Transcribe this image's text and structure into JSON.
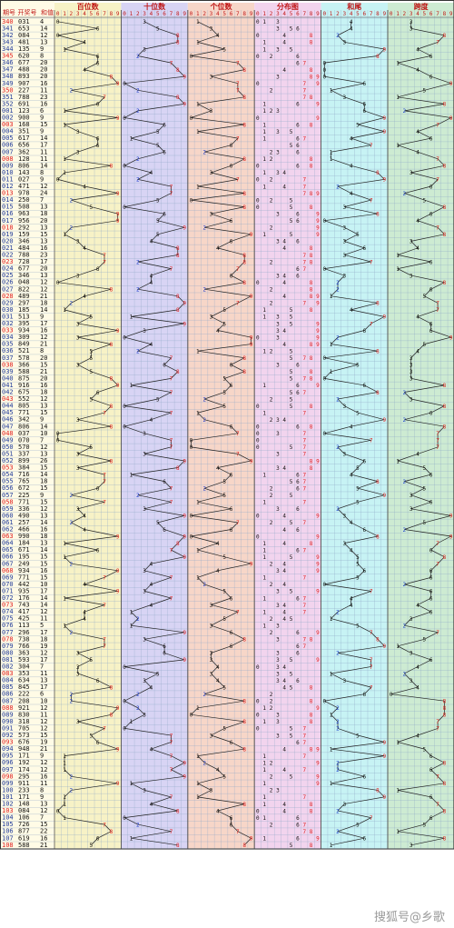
{
  "header": {
    "col_issue": "期号",
    "col_draw": "开奖号",
    "col_sum": "和值",
    "sections": [
      "百位数",
      "十位数",
      "个位数",
      "分布图",
      "和尾",
      "跨度"
    ],
    "digits": [
      "0",
      "1",
      "2",
      "3",
      "4",
      "5",
      "6",
      "7",
      "8",
      "9"
    ]
  },
  "colors": {
    "bg_hundreds": "#f7f2c6",
    "bg_tens": "#d8d4f4",
    "bg_units": "#f7d6c8",
    "bg_distribution": "#f2d4ee",
    "bg_sum_tail": "#c7f3f4",
    "bg_span": "#cdebd2",
    "header_text": "#c01818",
    "grid_line": "#8fa8c8",
    "line": "#222222",
    "highlight_red": "#e02020",
    "highlight_blue": "#1a3ccc"
  },
  "watermark": "搜狐号@乡歌",
  "chart_data": {
    "type": "table",
    "title": "",
    "columns": [
      "期号",
      "开奖号",
      "和值",
      "百位数",
      "十位数",
      "个位数",
      "分布图",
      "和尾",
      "跨度"
    ],
    "rows": [
      {
        "issue": "340",
        "draw": "031",
        "sum": 4
      },
      {
        "issue": "341",
        "draw": "653",
        "sum": 14
      },
      {
        "issue": "342",
        "draw": "084",
        "sum": 12
      },
      {
        "issue": "343",
        "draw": "481",
        "sum": 13
      },
      {
        "issue": "344",
        "draw": "135",
        "sum": 9
      },
      {
        "issue": "345",
        "draw": "620",
        "sum": 8
      },
      {
        "issue": "346",
        "draw": "677",
        "sum": 20
      },
      {
        "issue": "347",
        "draw": "488",
        "sum": 20
      },
      {
        "issue": "348",
        "draw": "893",
        "sum": 20
      },
      {
        "issue": "349",
        "draw": "907",
        "sum": 16
      },
      {
        "issue": "350",
        "draw": "227",
        "sum": 11
      },
      {
        "issue": "351",
        "draw": "788",
        "sum": 23
      },
      {
        "issue": "352",
        "draw": "691",
        "sum": 16
      },
      {
        "issue": "001",
        "draw": "123",
        "sum": 6
      },
      {
        "issue": "002",
        "draw": "900",
        "sum": 9
      },
      {
        "issue": "003",
        "draw": "168",
        "sum": 15
      },
      {
        "issue": "004",
        "draw": "351",
        "sum": 9
      },
      {
        "issue": "005",
        "draw": "617",
        "sum": 14
      },
      {
        "issue": "006",
        "draw": "656",
        "sum": 17
      },
      {
        "issue": "007",
        "draw": "362",
        "sum": 11
      },
      {
        "issue": "008",
        "draw": "128",
        "sum": 11
      },
      {
        "issue": "009",
        "draw": "806",
        "sum": 14
      },
      {
        "issue": "010",
        "draw": "143",
        "sum": 8
      },
      {
        "issue": "011",
        "draw": "027",
        "sum": 9
      },
      {
        "issue": "012",
        "draw": "471",
        "sum": 12
      },
      {
        "issue": "013",
        "draw": "978",
        "sum": 24
      },
      {
        "issue": "014",
        "draw": "250",
        "sum": 7
      },
      {
        "issue": "015",
        "draw": "508",
        "sum": 13
      },
      {
        "issue": "016",
        "draw": "963",
        "sum": 18
      },
      {
        "issue": "017",
        "draw": "956",
        "sum": 20
      },
      {
        "issue": "018",
        "draw": "292",
        "sum": 13
      },
      {
        "issue": "019",
        "draw": "159",
        "sum": 15
      },
      {
        "issue": "020",
        "draw": "346",
        "sum": 13
      },
      {
        "issue": "021",
        "draw": "484",
        "sum": 16
      },
      {
        "issue": "022",
        "draw": "788",
        "sum": 23
      },
      {
        "issue": "023",
        "draw": "728",
        "sum": 17
      },
      {
        "issue": "024",
        "draw": "677",
        "sum": 20
      },
      {
        "issue": "025",
        "draw": "346",
        "sum": 13
      },
      {
        "issue": "026",
        "draw": "048",
        "sum": 12
      },
      {
        "issue": "027",
        "draw": "822",
        "sum": 12
      },
      {
        "issue": "028",
        "draw": "489",
        "sum": 21
      },
      {
        "issue": "029",
        "draw": "297",
        "sum": 18
      },
      {
        "issue": "030",
        "draw": "185",
        "sum": 14
      },
      {
        "issue": "031",
        "draw": "513",
        "sum": 9
      },
      {
        "issue": "032",
        "draw": "395",
        "sum": 17
      },
      {
        "issue": "033",
        "draw": "934",
        "sum": 16
      },
      {
        "issue": "034",
        "draw": "309",
        "sum": 12
      },
      {
        "issue": "035",
        "draw": "849",
        "sum": 21
      },
      {
        "issue": "036",
        "draw": "521",
        "sum": 8
      },
      {
        "issue": "037",
        "draw": "578",
        "sum": 20
      },
      {
        "issue": "038",
        "draw": "366",
        "sum": 15
      },
      {
        "issue": "039",
        "draw": "588",
        "sum": 21
      },
      {
        "issue": "040",
        "draw": "875",
        "sum": 20
      },
      {
        "issue": "041",
        "draw": "916",
        "sum": 16
      },
      {
        "issue": "042",
        "draw": "675",
        "sum": 18
      },
      {
        "issue": "043",
        "draw": "552",
        "sum": 12
      },
      {
        "issue": "044",
        "draw": "805",
        "sum": 13
      },
      {
        "issue": "045",
        "draw": "771",
        "sum": 15
      },
      {
        "issue": "046",
        "draw": "342",
        "sum": 9
      },
      {
        "issue": "047",
        "draw": "806",
        "sum": 14
      },
      {
        "issue": "048",
        "draw": "037",
        "sum": 10
      },
      {
        "issue": "049",
        "draw": "070",
        "sum": 7
      },
      {
        "issue": "050",
        "draw": "570",
        "sum": 12
      },
      {
        "issue": "051",
        "draw": "337",
        "sum": 13
      },
      {
        "issue": "052",
        "draw": "899",
        "sum": 26
      },
      {
        "issue": "053",
        "draw": "384",
        "sum": 15
      },
      {
        "issue": "054",
        "draw": "716",
        "sum": 14
      },
      {
        "issue": "055",
        "draw": "765",
        "sum": 18
      },
      {
        "issue": "056",
        "draw": "672",
        "sum": 15
      },
      {
        "issue": "057",
        "draw": "225",
        "sum": 9
      },
      {
        "issue": "058",
        "draw": "771",
        "sum": 15
      },
      {
        "issue": "059",
        "draw": "336",
        "sum": 12
      },
      {
        "issue": "060",
        "draw": "490",
        "sum": 13
      },
      {
        "issue": "061",
        "draw": "257",
        "sum": 14
      },
      {
        "issue": "062",
        "draw": "466",
        "sum": 16
      },
      {
        "issue": "063",
        "draw": "990",
        "sum": 18
      },
      {
        "issue": "064",
        "draw": "184",
        "sum": 13
      },
      {
        "issue": "065",
        "draw": "671",
        "sum": 14
      },
      {
        "issue": "066",
        "draw": "195",
        "sum": 15
      },
      {
        "issue": "067",
        "draw": "249",
        "sum": 15
      },
      {
        "issue": "068",
        "draw": "934",
        "sum": 16
      },
      {
        "issue": "069",
        "draw": "771",
        "sum": 15
      },
      {
        "issue": "070",
        "draw": "442",
        "sum": 10
      },
      {
        "issue": "071",
        "draw": "935",
        "sum": 17
      },
      {
        "issue": "072",
        "draw": "176",
        "sum": 14
      },
      {
        "issue": "073",
        "draw": "743",
        "sum": 14
      },
      {
        "issue": "074",
        "draw": "417",
        "sum": 12
      },
      {
        "issue": "075",
        "draw": "425",
        "sum": 11
      },
      {
        "issue": "076",
        "draw": "113",
        "sum": 5
      },
      {
        "issue": "077",
        "draw": "296",
        "sum": 17
      },
      {
        "issue": "078",
        "draw": "738",
        "sum": 18
      },
      {
        "issue": "079",
        "draw": "766",
        "sum": 19
      },
      {
        "issue": "080",
        "draw": "363",
        "sum": 12
      },
      {
        "issue": "081",
        "draw": "593",
        "sum": 17
      },
      {
        "issue": "082",
        "draw": "304",
        "sum": 7
      },
      {
        "issue": "083",
        "draw": "353",
        "sum": 11
      },
      {
        "issue": "084",
        "draw": "634",
        "sum": 13
      },
      {
        "issue": "085",
        "draw": "845",
        "sum": 17
      },
      {
        "issue": "086",
        "draw": "222",
        "sum": 6
      },
      {
        "issue": "087",
        "draw": "208",
        "sum": 10
      },
      {
        "issue": "088",
        "draw": "921",
        "sum": 12
      },
      {
        "issue": "089",
        "draw": "830",
        "sum": 11
      },
      {
        "issue": "090",
        "draw": "318",
        "sum": 12
      },
      {
        "issue": "091",
        "draw": "705",
        "sum": 12
      },
      {
        "issue": "092",
        "draw": "573",
        "sum": 15
      },
      {
        "issue": "093",
        "draw": "676",
        "sum": 19
      },
      {
        "issue": "094",
        "draw": "948",
        "sum": 21
      },
      {
        "issue": "095",
        "draw": "171",
        "sum": 9
      },
      {
        "issue": "096",
        "draw": "192",
        "sum": 12
      },
      {
        "issue": "097",
        "draw": "174",
        "sum": 12
      },
      {
        "issue": "098",
        "draw": "295",
        "sum": 16
      },
      {
        "issue": "099",
        "draw": "911",
        "sum": 11
      },
      {
        "issue": "100",
        "draw": "233",
        "sum": 8
      },
      {
        "issue": "101",
        "draw": "171",
        "sum": 9
      },
      {
        "issue": "102",
        "draw": "148",
        "sum": 13
      },
      {
        "issue": "103",
        "draw": "084",
        "sum": 12
      },
      {
        "issue": "104",
        "draw": "106",
        "sum": 7
      },
      {
        "issue": "105",
        "draw": "726",
        "sum": 15
      },
      {
        "issue": "106",
        "draw": "877",
        "sum": 22
      },
      {
        "issue": "107",
        "draw": "619",
        "sum": 16
      },
      {
        "issue": "108",
        "draw": "588",
        "sum": 21
      }
    ]
  }
}
